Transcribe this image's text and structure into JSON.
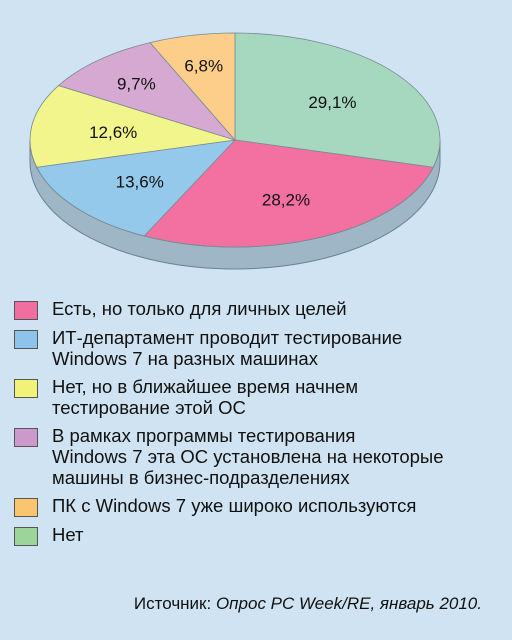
{
  "chart_data": {
    "type": "pie",
    "slices": [
      {
        "label": "Нет",
        "value": 29.1,
        "value_label": "29,1%",
        "color": "#a6d8bf",
        "legend_color": "#9dd49a"
      },
      {
        "label": "Есть, но только для личных целей",
        "value": 28.2,
        "value_label": "28,2%",
        "color": "#f371a1",
        "legend_color": "#f06fa0"
      },
      {
        "label": "ИТ-департамент проводит тестирование\nWindows 7 на разных машинах",
        "value": 13.6,
        "value_label": "13,6%",
        "color": "#94c9ec",
        "legend_color": "#8cc4eb"
      },
      {
        "label": "Нет, но в ближайшее время начнем\nтестирование этой ОС",
        "value": 12.6,
        "value_label": "12,6%",
        "color": "#f2f48c",
        "legend_color": "#f0f27a"
      },
      {
        "label": "В рамках программы тестирования\nWindows 7 эта ОС установлена на некоторые\nмашины в бизнес-подразделениях",
        "value": 9.7,
        "value_label": "9,7%",
        "color": "#d6a9d2",
        "legend_color": "#cc99cc"
      },
      {
        "label": "ПК с Windows 7 уже широко используются",
        "value": 6.8,
        "value_label": "6,8%",
        "color": "#fcce8a",
        "legend_color": "#fbc570"
      }
    ],
    "legend_order": [
      1,
      2,
      3,
      4,
      5,
      0
    ],
    "legend_placement": "bottom",
    "source_prefix": "Источник: ",
    "source_text": "Опрос PC Week/RE, январь 2010."
  }
}
